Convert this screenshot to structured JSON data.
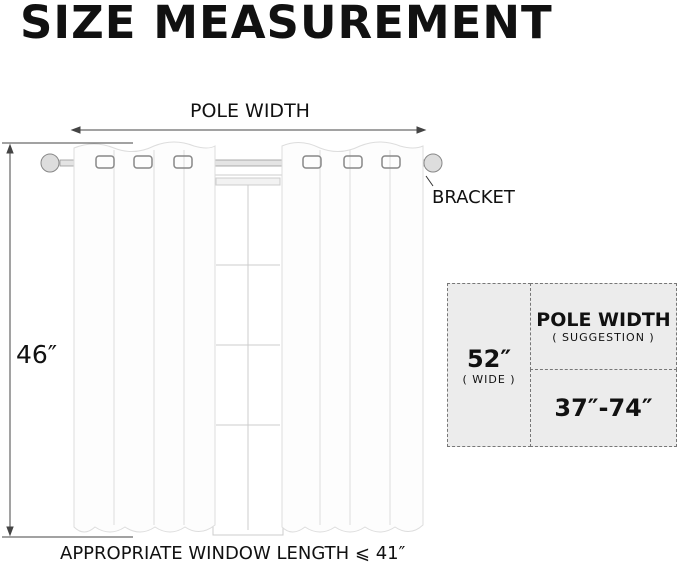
{
  "title": "SIZE MEASUREMENT",
  "labels": {
    "pole_width": "POLE WIDTH",
    "bracket": "BRACKET",
    "height": "46″",
    "window_length": "APPROPRIATE WINDOW LENGTH ⩽ 41″"
  },
  "size_table": {
    "width_value": "52″",
    "width_note": "( WIDE )",
    "pole_title": "POLE WIDTH",
    "pole_note": "( SUGGESTION )",
    "pole_range": "37″-74″"
  },
  "colors": {
    "box_fill": "#ececec",
    "text": "#111111"
  }
}
